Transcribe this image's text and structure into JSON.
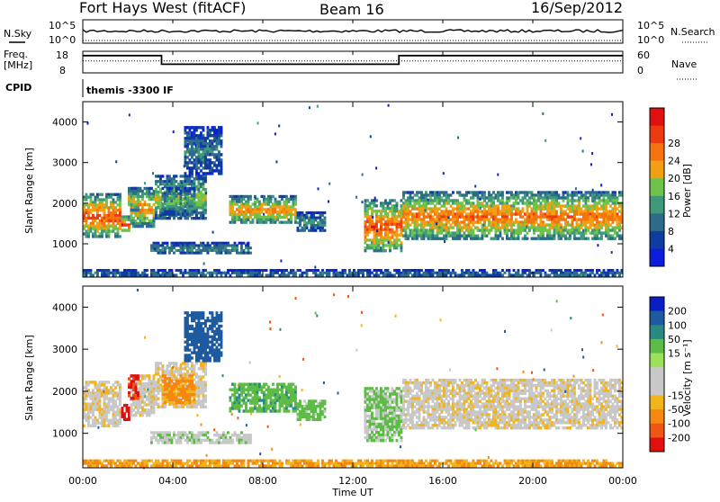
{
  "header": {
    "station": "Fort Hays West (fitACF)",
    "beam": "Beam 16",
    "date": "16/Sep/2012"
  },
  "noise_panel": {
    "left_label": "N.Sky",
    "right_label": "N.Search",
    "left_ticks": [
      "10^5",
      "10^0"
    ],
    "right_ticks": [
      "10^5",
      "10^0"
    ]
  },
  "freq_panel": {
    "left_label_line1": "Freq.",
    "left_label_line2": "[MHz]",
    "right_label": "Nave",
    "left_ticks": [
      "18",
      "8"
    ],
    "right_ticks": [
      "60",
      "0"
    ],
    "freq_segments": [
      {
        "t0": 0.0,
        "t1": 3.5,
        "level": 0.8
      },
      {
        "t0": 3.5,
        "t1": 14.05,
        "level": 0.4
      },
      {
        "t0": 14.05,
        "t1": 24.0,
        "level": 0.8
      }
    ],
    "nave_level": 0.55
  },
  "cpid": {
    "label": "CPID",
    "value": "themis -3300 IF"
  },
  "axes": {
    "x_label": "Time UT",
    "x_ticks": [
      "00:00",
      "04:00",
      "08:00",
      "12:00",
      "16:00",
      "20:00",
      "00:00"
    ],
    "y_label": "Slant Range [km]",
    "y_ticks": [
      "1000",
      "2000",
      "3000",
      "4000"
    ]
  },
  "power_colorbar": {
    "label": "Power [dB]",
    "tick_labels": [
      "4",
      "8",
      "12",
      "16",
      "20",
      "24",
      "28"
    ],
    "colors": [
      "#0a1edc",
      "#0f3ca0",
      "#2e6b8a",
      "#3e9a78",
      "#6fc24a",
      "#f2a012",
      "#f5740f",
      "#ee3a10",
      "#e01010"
    ]
  },
  "velocity_colorbar": {
    "label": "Velocity [m s⁻¹]",
    "tick_labels": [
      "200",
      "100",
      "50",
      "15",
      "-15",
      "-50",
      "-100",
      "-200"
    ],
    "colors": [
      "#0a1ec8",
      "#1e5aa0",
      "#2a8a82",
      "#5cbc45",
      "#9be25a",
      "#c8c8c8",
      "#c8c8c8",
      "#f2b41a",
      "#f5880f",
      "#f05514",
      "#e01010"
    ]
  },
  "chart_data": {
    "type": "heatmap",
    "time_range_hours": [
      0,
      24
    ],
    "range_km": [
      180,
      4500
    ],
    "power_db_range": [
      0,
      32
    ],
    "velocity_range_ms": [
      -250,
      250
    ],
    "echo_regions": [
      {
        "t0": 0.0,
        "t1": 1.7,
        "r0": 1150,
        "r1": 2250,
        "power_db": 26,
        "velocity_ms": -5
      },
      {
        "t0": 1.7,
        "t1": 2.1,
        "r0": 1300,
        "r1": 1700,
        "power_db": 28,
        "velocity_ms": -250
      },
      {
        "t0": 2.1,
        "t1": 3.2,
        "r0": 1400,
        "r1": 2400,
        "power_db": 22,
        "velocity_ms": -5
      },
      {
        "t0": 2.0,
        "t1": 2.5,
        "r0": 1800,
        "r1": 2400,
        "power_db": 20,
        "velocity_ms": -200
      },
      {
        "t0": 3.2,
        "t1": 5.5,
        "r0": 1600,
        "r1": 2700,
        "power_db": 18,
        "velocity_ms": -5
      },
      {
        "t0": 3.5,
        "t1": 5.0,
        "r0": 1700,
        "r1": 2400,
        "power_db": 14,
        "velocity_ms": -60
      },
      {
        "t0": 3.0,
        "t1": 7.5,
        "r0": 750,
        "r1": 1050,
        "power_db": 12,
        "velocity_ms": 5
      },
      {
        "t0": 4.5,
        "t1": 6.2,
        "r0": 2700,
        "r1": 3900,
        "power_db": 10,
        "velocity_ms": 150
      },
      {
        "t0": 6.5,
        "t1": 9.5,
        "r0": 1500,
        "r1": 2200,
        "power_db": 22,
        "velocity_ms": 40
      },
      {
        "t0": 9.5,
        "t1": 10.8,
        "r0": 1300,
        "r1": 1800,
        "power_db": 12,
        "velocity_ms": 30
      },
      {
        "t0": 12.5,
        "t1": 14.2,
        "r0": 800,
        "r1": 2100,
        "power_db": 26,
        "velocity_ms": 20
      },
      {
        "t0": 14.2,
        "t1": 24.0,
        "r0": 1100,
        "r1": 2300,
        "power_db": 24,
        "velocity_ms": -5
      },
      {
        "t0": 0.0,
        "t1": 24.0,
        "r0": 200,
        "r1": 380,
        "power_db": 10,
        "velocity_ms": -50
      }
    ]
  }
}
